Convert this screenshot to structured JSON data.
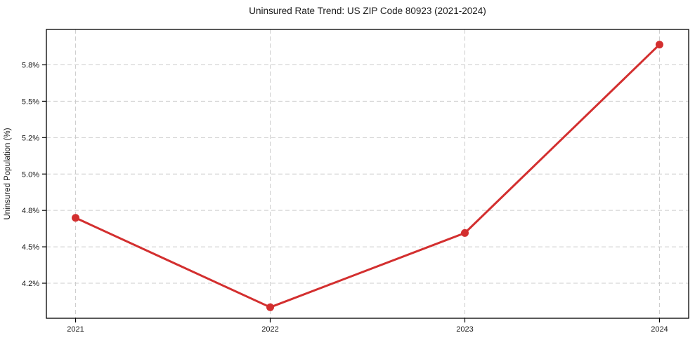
{
  "chart_data": {
    "type": "line",
    "title": "Uninsured Rate Trend: US ZIP Code 80923 (2021-2024)",
    "xlabel": "",
    "ylabel": "Uninsured Population (%)",
    "x": [
      2021,
      2022,
      2023,
      2024
    ],
    "x_tick_labels": [
      "2021",
      "2022",
      "2023",
      "2024"
    ],
    "values": [
      4.68,
      4.03,
      4.57,
      5.94
    ],
    "unit": "%",
    "y_tick_labels": [
      "4.2%",
      "4.5%",
      "4.8%",
      "5.0%",
      "5.2%",
      "5.5%",
      "5.8%"
    ],
    "xlim": [
      2020.85,
      2024.15
    ],
    "ylim": [
      3.95,
      6.05
    ],
    "grid": true,
    "grid_style": "dashed",
    "legend": "none",
    "line_color": "#d32f2f",
    "marker": "circle"
  },
  "colors": {
    "line": "#d32f2f",
    "grid": "#cccccc",
    "axis": "#000000",
    "text": "#1a1a1a",
    "background": "#ffffff"
  }
}
